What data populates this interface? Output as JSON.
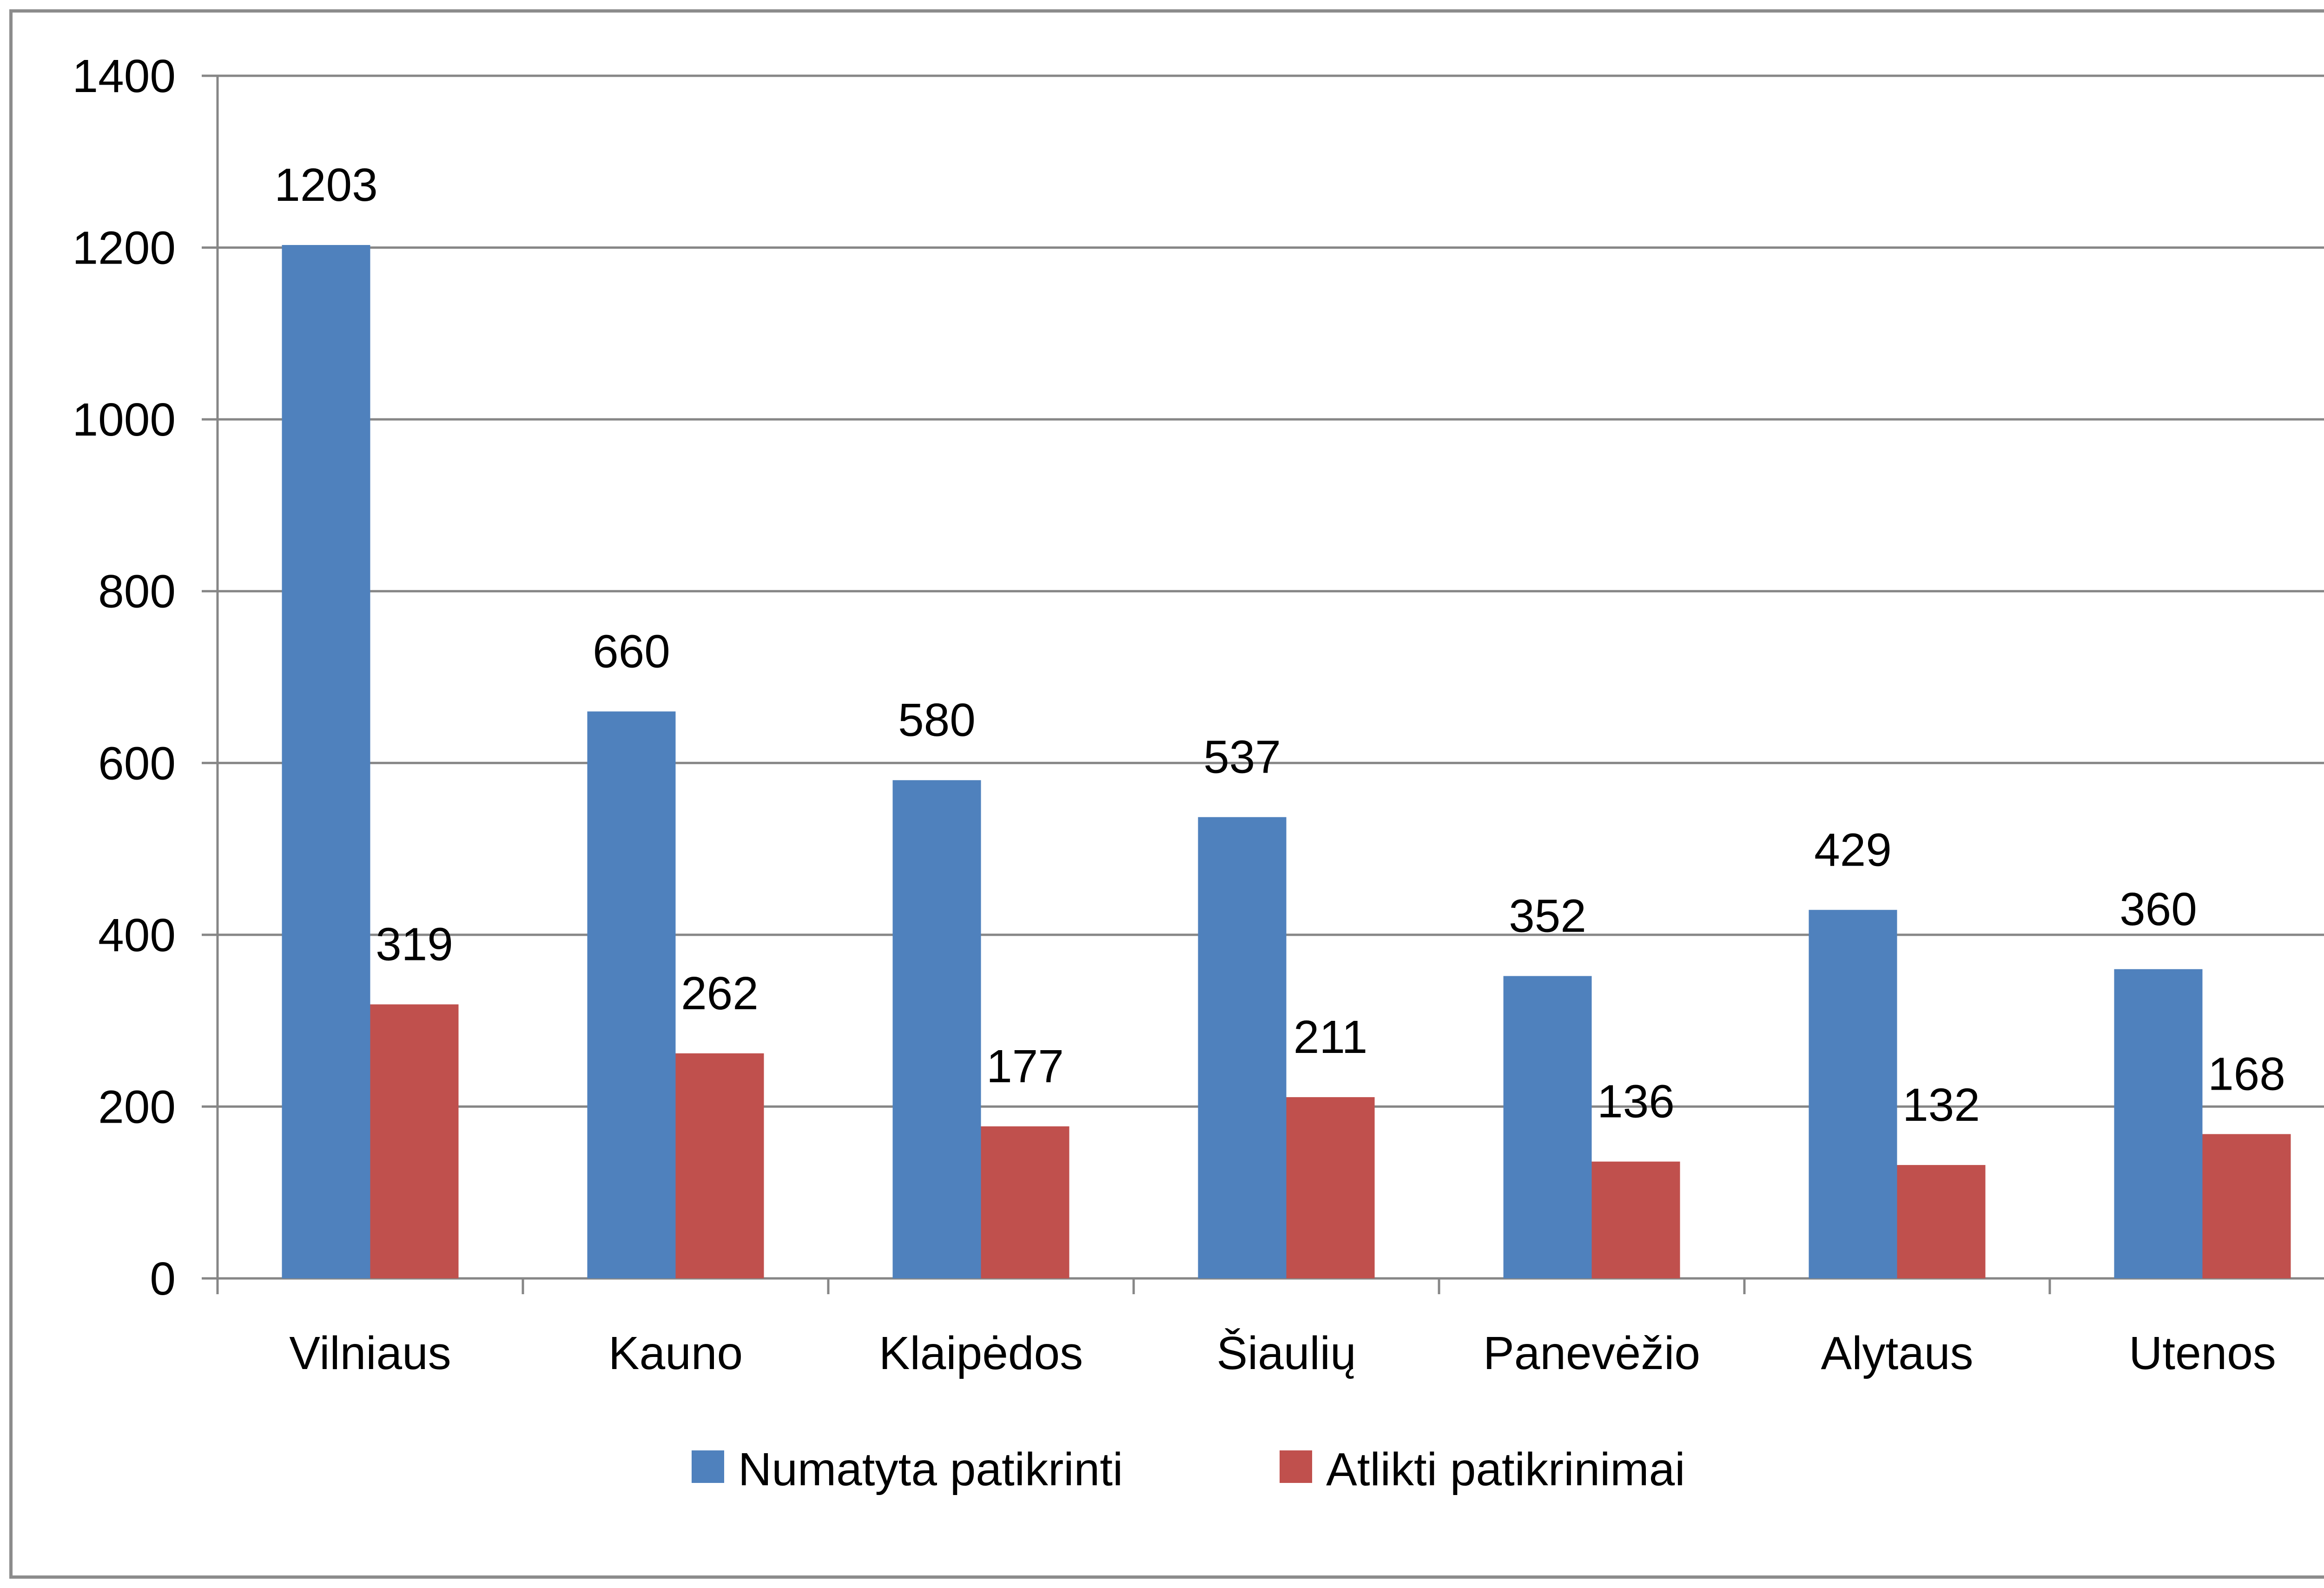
{
  "chart_data": {
    "type": "bar",
    "title": "",
    "xlabel": "",
    "ylabel": "",
    "ylim": [
      0,
      1400
    ],
    "yticks": [
      0,
      200,
      400,
      600,
      800,
      1000,
      1200,
      1400
    ],
    "grid": true,
    "legend_position": "bottom",
    "categories": [
      "Vilniaus",
      "Kauno",
      "Klaipėdos",
      "Šiaulių",
      "Panevėžio",
      "Alytaus",
      "Utenos"
    ],
    "series": [
      {
        "name": "Numatyta patikrinti",
        "color": "#4f81bd",
        "values": [
          1203,
          660,
          580,
          537,
          352,
          429,
          360
        ]
      },
      {
        "name": "Atlikti patikrinimai",
        "color": "#c0504d",
        "values": [
          319,
          262,
          177,
          211,
          136,
          132,
          168
        ]
      }
    ]
  }
}
